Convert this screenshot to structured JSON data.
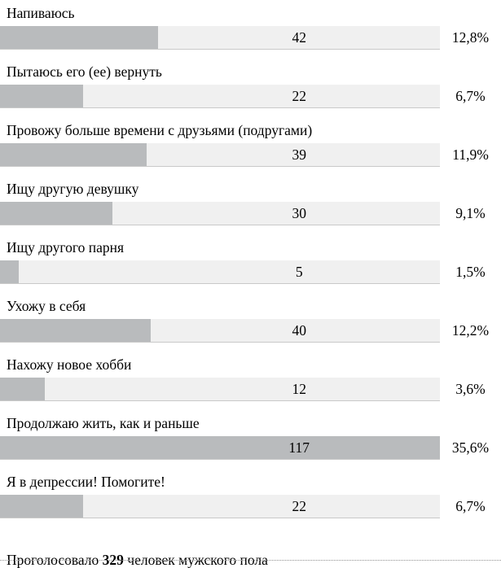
{
  "poll": {
    "max_votes": 117,
    "items": [
      {
        "label": "Напиваюсь",
        "votes": 42,
        "percent": "12,8%"
      },
      {
        "label": "Пытаюсь его (ее) вернуть",
        "votes": 22,
        "percent": "6,7%"
      },
      {
        "label": "Провожу больше времени с друзьями (подругами)",
        "votes": 39,
        "percent": "11,9%"
      },
      {
        "label": "Ищу другую девушку",
        "votes": 30,
        "percent": "9,1%"
      },
      {
        "label": "Ищу другого парня",
        "votes": 5,
        "percent": "1,5%"
      },
      {
        "label": "Ухожу в себя",
        "votes": 40,
        "percent": "12,2%"
      },
      {
        "label": "Нахожу новое хобби",
        "votes": 12,
        "percent": "3,6%"
      },
      {
        "label": "Продолжаю жить, как и раньше",
        "votes": 117,
        "percent": "35,6%"
      },
      {
        "label": "Я в депрессии! Помогите!",
        "votes": 22,
        "percent": "6,7%"
      }
    ],
    "footer": {
      "prefix": "Проголосовало",
      "total": "329",
      "suffix": "человек мужского пола"
    },
    "colors": {
      "bar_fill": "#b9bbbd",
      "bar_track": "#f0f0f0",
      "track_border": "#c9c9c9",
      "text": "#000000",
      "dotted_rule": "#8f8f8f"
    }
  },
  "chart_data": {
    "type": "bar",
    "orientation": "horizontal",
    "title": "",
    "categories": [
      "Напиваюсь",
      "Пытаюсь его (ее) вернуть",
      "Провожу больше времени с друзьями (подругами)",
      "Ищу другую девушку",
      "Ищу другого парня",
      "Ухожу в себя",
      "Нахожу новое хобби",
      "Продолжаю жить, как и раньше",
      "Я в депрессии! Помогите!"
    ],
    "values": [
      42,
      22,
      39,
      30,
      5,
      40,
      12,
      117,
      22
    ],
    "percent_labels": [
      "12,8%",
      "6,7%",
      "11,9%",
      "9,1%",
      "1,5%",
      "12,2%",
      "3,6%",
      "35,6%",
      "6,7%"
    ],
    "value_axis_max": 117,
    "grid": false,
    "legend": false,
    "total_votes": 329,
    "footer_text": "Проголосовало 329 человек мужского пола"
  }
}
